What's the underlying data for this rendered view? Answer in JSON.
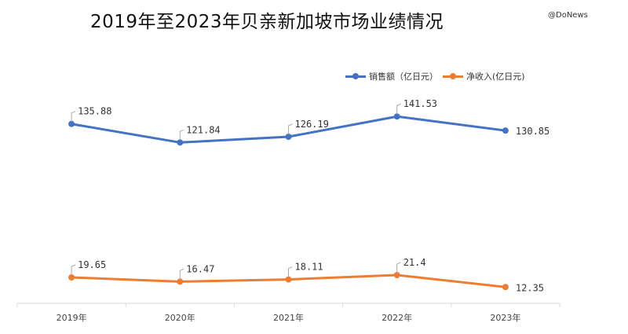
{
  "chart_data": {
    "type": "line",
    "title": "2019年至2023年贝亲新加坡市场业绩情况",
    "categories": [
      "2019年",
      "2020年",
      "2021年",
      "2022年",
      "2023年"
    ],
    "series": [
      {
        "name": "销售额（亿日元）",
        "values": [
          135.88,
          121.84,
          126.19,
          141.53,
          130.85
        ],
        "labels": [
          "135.88",
          "121.84",
          "126.19",
          "141.53",
          "130.85"
        ],
        "color": "#4472C4"
      },
      {
        "name": "净收入(亿日元)",
        "values": [
          19.65,
          16.47,
          18.11,
          21.4,
          12.35
        ],
        "labels": [
          "19.65",
          "16.47",
          "18.11",
          "21.4",
          "12.35"
        ],
        "color": "#ED7D31"
      }
    ],
    "ylim": [
      0,
      200
    ],
    "grid": false,
    "legend": "top-right",
    "xlabel": "",
    "ylabel": ""
  },
  "watermark": "@DoNews"
}
